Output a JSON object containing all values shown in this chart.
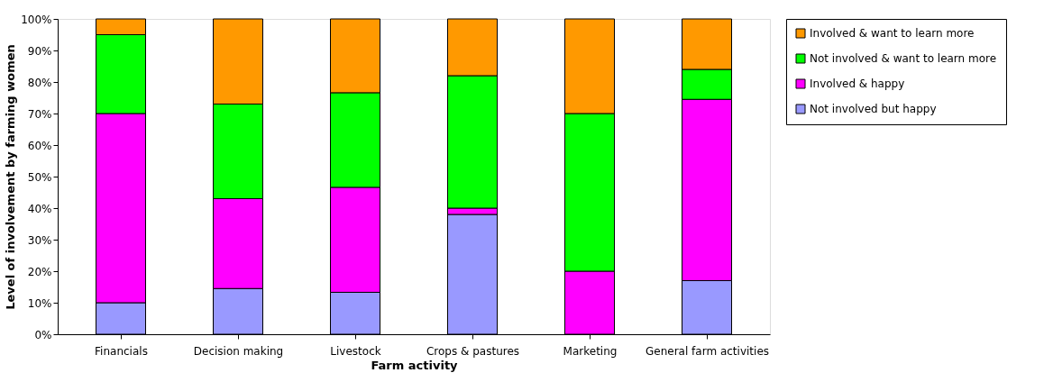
{
  "chart_data": {
    "type": "bar",
    "stacked": true,
    "xlabel": "Farm activity",
    "ylabel": "Level of involvement by farming women",
    "categories": [
      "Financials",
      "Decision making",
      "Livestock",
      "Crops & pastures",
      "Marketing",
      "General farm activities"
    ],
    "series": [
      {
        "name": "Not involved but happy",
        "color": "#9999ff",
        "values": [
          10,
          14.5,
          13.3,
          38,
          0,
          17
        ]
      },
      {
        "name": "Involved & happy",
        "color": "#ff00ff",
        "values": [
          60,
          28.5,
          33.3,
          2,
          20,
          57.5
        ]
      },
      {
        "name": "Not involved & want to learn more",
        "color": "#00ff00",
        "values": [
          25,
          30,
          30,
          42,
          50,
          9.5
        ]
      },
      {
        "name": "Involved & want to learn more",
        "color": "#ff9900",
        "values": [
          5,
          27,
          23.4,
          18,
          30,
          16
        ]
      }
    ],
    "ylim": [
      0,
      100
    ],
    "yticks": [
      {
        "value": 0,
        "label": "0%"
      },
      {
        "value": 10,
        "label": "10%"
      },
      {
        "value": 20,
        "label": "20%"
      },
      {
        "value": 30,
        "label": "30%"
      },
      {
        "value": 40,
        "label": "40%"
      },
      {
        "value": 50,
        "label": "50%"
      },
      {
        "value": 60,
        "label": "60%"
      },
      {
        "value": 70,
        "label": "70%"
      },
      {
        "value": 80,
        "label": "80%"
      },
      {
        "value": 90,
        "label": "90%"
      },
      {
        "value": 100,
        "label": "100%"
      }
    ],
    "grid": false,
    "legend": "right"
  }
}
